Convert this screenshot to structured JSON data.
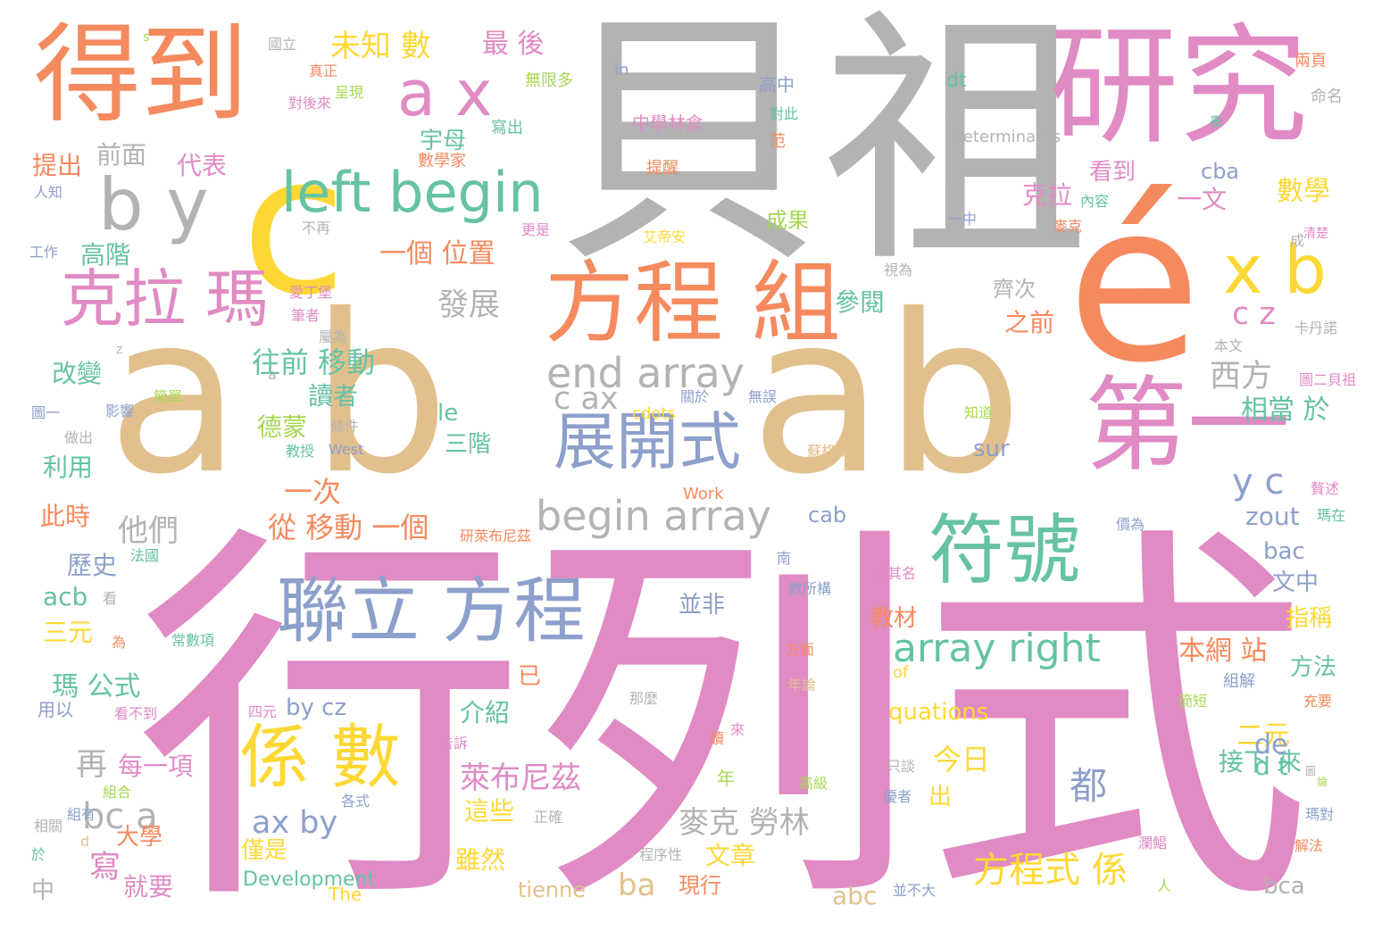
{
  "palette": {
    "pink": "#e08bc4",
    "orange": "#f58a5f",
    "tan": "#e2c08d",
    "gray": "#b3b3b3",
    "yellow": "#fdd835",
    "green": "#66c2a5",
    "blue": "#8da0cb",
    "lime": "#a6d854"
  },
  "words": [
    {
      "text": "行列式",
      "color": "pink"
    },
    {
      "text": "貝祖",
      "color": "gray"
    },
    {
      "text": "a b",
      "color": "tan"
    },
    {
      "text": "ab",
      "color": "tan"
    },
    {
      "text": "é",
      "color": "orange"
    },
    {
      "text": "c",
      "color": "yellow"
    },
    {
      "text": "研究",
      "color": "pink"
    },
    {
      "text": "得到",
      "color": "orange"
    },
    {
      "text": "第一",
      "color": "pink"
    },
    {
      "text": "符號",
      "color": "green"
    },
    {
      "text": "方程 組",
      "color": "orange"
    },
    {
      "text": "聯立 方程",
      "color": "blue"
    },
    {
      "text": "係 數",
      "color": "yellow"
    },
    {
      "text": "克拉 瑪",
      "color": "pink"
    },
    {
      "text": "展開式",
      "color": "blue"
    },
    {
      "text": "left begin",
      "color": "green"
    },
    {
      "text": "a x",
      "color": "pink"
    },
    {
      "text": "b y",
      "color": "gray"
    },
    {
      "text": "x b",
      "color": "yellow"
    },
    {
      "text": "begin array",
      "color": "gray"
    },
    {
      "text": "end array",
      "color": "gray"
    },
    {
      "text": "array right",
      "color": "green"
    },
    {
      "text": "方程式 係",
      "color": "yellow"
    },
    {
      "text": "未知 數",
      "color": "yellow"
    },
    {
      "text": "最 後",
      "color": "pink"
    },
    {
      "text": "一個 位置",
      "color": "orange"
    },
    {
      "text": "發展",
      "color": "gray"
    },
    {
      "text": "c ax",
      "color": "gray"
    },
    {
      "text": "數學",
      "color": "yellow"
    },
    {
      "text": "y c",
      "color": "blue"
    },
    {
      "text": "c z",
      "color": "pink"
    },
    {
      "text": "西方",
      "color": "gray"
    },
    {
      "text": "相當 於",
      "color": "green"
    },
    {
      "text": "zout",
      "color": "blue"
    },
    {
      "text": "一次",
      "color": "orange"
    },
    {
      "text": "他們",
      "color": "gray"
    },
    {
      "text": "從 移動 一個",
      "color": "orange"
    },
    {
      "text": "往前 移動",
      "color": "green"
    },
    {
      "text": "萊布尼茲",
      "color": "pink"
    },
    {
      "text": "麥克 勞林",
      "color": "gray"
    },
    {
      "text": "ax by",
      "color": "blue"
    },
    {
      "text": "bc a",
      "color": "gray"
    },
    {
      "text": "本網 站",
      "color": "orange"
    },
    {
      "text": "二元",
      "color": "yellow"
    },
    {
      "text": "今日",
      "color": "yellow"
    },
    {
      "text": "都",
      "color": "blue"
    },
    {
      "text": "ba",
      "color": "tan"
    },
    {
      "text": "abc",
      "color": "tan"
    },
    {
      "text": "三元",
      "color": "yellow"
    },
    {
      "text": "瑪 公式",
      "color": "green"
    },
    {
      "text": "再",
      "color": "gray"
    },
    {
      "text": "每一項",
      "color": "pink"
    },
    {
      "text": "by cz",
      "color": "blue"
    },
    {
      "text": "介紹",
      "color": "green"
    },
    {
      "text": "這些",
      "color": "yellow"
    },
    {
      "text": "雖然",
      "color": "yellow"
    },
    {
      "text": "文章",
      "color": "yellow"
    },
    {
      "text": "現行",
      "color": "orange"
    },
    {
      "text": "克拉",
      "color": "pink"
    },
    {
      "text": "一文",
      "color": "pink"
    },
    {
      "text": "看到",
      "color": "pink"
    },
    {
      "text": "cba",
      "color": "blue"
    },
    {
      "text": "bac",
      "color": "blue"
    },
    {
      "text": "文中",
      "color": "blue"
    },
    {
      "text": "指稱",
      "color": "yellow"
    },
    {
      "text": "方法",
      "color": "green"
    },
    {
      "text": "接下 來",
      "color": "green"
    },
    {
      "text": "d t",
      "color": "green"
    },
    {
      "text": "de",
      "color": "blue"
    },
    {
      "text": "bca",
      "color": "gray"
    },
    {
      "text": "quations",
      "color": "yellow"
    },
    {
      "text": "cab",
      "color": "blue"
    },
    {
      "text": "三階",
      "color": "green"
    },
    {
      "text": "le",
      "color": "green"
    },
    {
      "text": "sur",
      "color": "blue"
    },
    {
      "text": "dt",
      "color": "green"
    },
    {
      "text": "兩頁",
      "color": "orange"
    },
    {
      "text": "命名",
      "color": "gray"
    },
    {
      "text": "Determinants",
      "color": "gray"
    },
    {
      "text": "數學家",
      "color": "orange"
    },
    {
      "text": "中學林倉",
      "color": "pink"
    },
    {
      "text": "提醒",
      "color": "orange"
    },
    {
      "text": "in",
      "color": "blue"
    },
    {
      "text": "無限多",
      "color": "lime"
    },
    {
      "text": "寫出",
      "color": "green"
    },
    {
      "text": "宇母",
      "color": "green"
    },
    {
      "text": "提出",
      "color": "orange"
    },
    {
      "text": "前面",
      "color": "gray"
    },
    {
      "text": "代表",
      "color": "pink"
    },
    {
      "text": "高階",
      "color": "green"
    },
    {
      "text": "改變",
      "color": "green"
    },
    {
      "text": "利用",
      "color": "green"
    },
    {
      "text": "此時",
      "color": "orange"
    },
    {
      "text": "歷史",
      "color": "blue"
    },
    {
      "text": "acb",
      "color": "green"
    },
    {
      "text": "用以",
      "color": "blue"
    },
    {
      "text": "中",
      "color": "gray"
    },
    {
      "text": "寫",
      "color": "pink"
    },
    {
      "text": "就要",
      "color": "pink"
    },
    {
      "text": "僅是",
      "color": "yellow"
    },
    {
      "text": "大學",
      "color": "orange"
    },
    {
      "text": "德蒙",
      "color": "lime"
    },
    {
      "text": "讀者",
      "color": "green"
    },
    {
      "text": "參閱",
      "color": "green"
    },
    {
      "text": "齊次",
      "color": "gray"
    },
    {
      "text": "之前",
      "color": "orange"
    },
    {
      "text": "對",
      "color": "gray"
    },
    {
      "text": "成果",
      "color": "lime"
    },
    {
      "text": "范",
      "color": "orange"
    },
    {
      "text": "高中",
      "color": "blue"
    },
    {
      "text": "並非",
      "color": "blue"
    },
    {
      "text": "教材",
      "color": "orange"
    },
    {
      "text": "出",
      "color": "yellow"
    },
    {
      "text": "已",
      "color": "orange"
    },
    {
      "text": "tienne",
      "color": "tan"
    },
    {
      "text": "Development",
      "color": "green"
    },
    {
      "text": "The",
      "color": "yellow"
    },
    {
      "text": "Work",
      "color": "orange"
    },
    {
      "text": "cdots",
      "color": "yellow"
    },
    {
      "text": "West",
      "color": "blue"
    },
    {
      "text": "of",
      "color": "yellow"
    },
    {
      "text": "組解",
      "color": "blue"
    },
    {
      "text": "國立",
      "color": "gray"
    },
    {
      "text": "真正",
      "color": "orange"
    },
    {
      "text": "對後來",
      "color": "pink"
    },
    {
      "text": "呈現",
      "color": "lime"
    },
    {
      "text": "對此",
      "color": "green"
    },
    {
      "text": "人知",
      "color": "blue"
    },
    {
      "text": "工作",
      "color": "blue"
    },
    {
      "text": "圖一",
      "color": "blue"
    },
    {
      "text": "做出",
      "color": "gray"
    },
    {
      "text": "影響",
      "color": "blue"
    },
    {
      "text": "教授",
      "color": "green"
    },
    {
      "text": "條件",
      "color": "gray"
    },
    {
      "text": "關於",
      "color": "blue"
    },
    {
      "text": "無誤",
      "color": "blue"
    },
    {
      "text": "蘇格蘭",
      "color": "tan"
    },
    {
      "text": "知道",
      "color": "lime"
    },
    {
      "text": "法國",
      "color": "green"
    },
    {
      "text": "看",
      "color": "gray"
    },
    {
      "text": "為",
      "color": "orange"
    },
    {
      "text": "常數項",
      "color": "green"
    },
    {
      "text": "看不到",
      "color": "pink"
    },
    {
      "text": "組合",
      "color": "lime"
    },
    {
      "text": "組有",
      "color": "blue"
    },
    {
      "text": "於",
      "color": "green"
    },
    {
      "text": "d",
      "color": "tan"
    },
    {
      "text": "相關",
      "color": "gray"
    },
    {
      "text": "正確",
      "color": "gray"
    },
    {
      "text": "各式",
      "color": "blue"
    },
    {
      "text": "程序性",
      "color": "gray"
    },
    {
      "text": "告訴",
      "color": "pink"
    },
    {
      "text": "四元",
      "color": "pink"
    },
    {
      "text": "那麼",
      "color": "gray"
    },
    {
      "text": "年論",
      "color": "tan"
    },
    {
      "text": "方面",
      "color": "orange"
    },
    {
      "text": "數所構",
      "color": "blue"
    },
    {
      "text": "南",
      "color": "blue"
    },
    {
      "text": "以其名",
      "color": "pink"
    },
    {
      "text": "研萊布尼茲",
      "color": "orange"
    },
    {
      "text": "價為",
      "color": "blue"
    },
    {
      "text": "贅述",
      "color": "pink"
    },
    {
      "text": "瑪在",
      "color": "green"
    },
    {
      "text": "充要",
      "color": "orange"
    },
    {
      "text": "簡短",
      "color": "lime"
    },
    {
      "text": "瑪對",
      "color": "blue"
    },
    {
      "text": "只談",
      "color": "gray"
    },
    {
      "text": "優者",
      "color": "blue"
    },
    {
      "text": "並不大",
      "color": "blue"
    },
    {
      "text": "高級",
      "color": "lime"
    },
    {
      "text": "解法",
      "color": "orange"
    },
    {
      "text": "瀾鯧",
      "color": "pink"
    },
    {
      "text": "人",
      "color": "lime"
    },
    {
      "text": "圖",
      "color": "gray"
    },
    {
      "text": "論",
      "color": "lime"
    },
    {
      "text": "讀",
      "color": "orange"
    },
    {
      "text": "來",
      "color": "pink"
    },
    {
      "text": "年",
      "color": "lime"
    },
    {
      "text": "更是",
      "color": "pink"
    },
    {
      "text": "艾帝安",
      "color": "yellow"
    },
    {
      "text": "不再",
      "color": "gray"
    },
    {
      "text": "視為",
      "color": "gray"
    },
    {
      "text": "一中",
      "color": "blue"
    },
    {
      "text": "麥克",
      "color": "orange"
    },
    {
      "text": "成",
      "color": "gray"
    },
    {
      "text": "清楚",
      "color": "pink"
    },
    {
      "text": "內容",
      "color": "green"
    },
    {
      "text": "卡丹諾",
      "color": "gray"
    },
    {
      "text": "本文",
      "color": "gray"
    },
    {
      "text": "圖二貝祖",
      "color": "pink"
    },
    {
      "text": "愛丁堡",
      "color": "pink"
    },
    {
      "text": "筆者",
      "color": "pink"
    },
    {
      "text": "屬為",
      "color": "gray"
    },
    {
      "text": "簡單",
      "color": "lime"
    },
    {
      "text": "a",
      "color": "gray"
    },
    {
      "text": "z",
      "color": "gray"
    },
    {
      "text": "s",
      "color": "lime"
    },
    {
      "text": "臺",
      "color": "green"
    }
  ]
}
